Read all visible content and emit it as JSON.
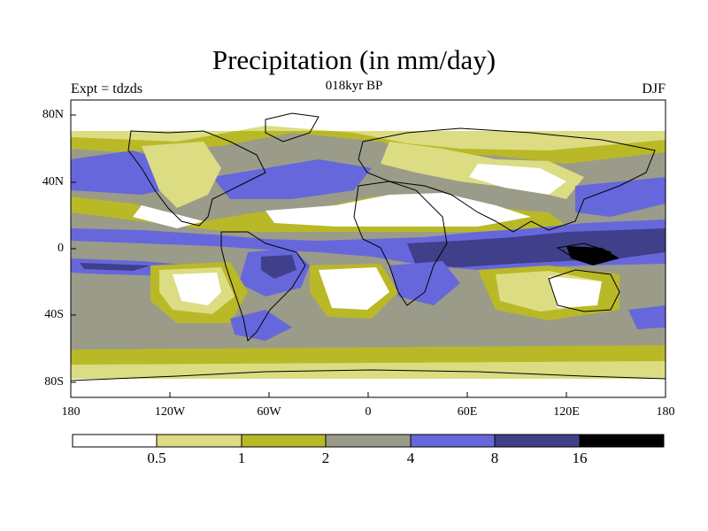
{
  "title": "Precipitation (in mm/day)",
  "experiment_label": "Expt = tdzds",
  "period_label": "018kyr BP",
  "season_label": "DJF",
  "lat_ticks": [
    "80N",
    "40N",
    "0",
    "40S",
    "80S"
  ],
  "lon_ticks": [
    "180",
    "120W",
    "60W",
    "0",
    "60E",
    "120E",
    "180"
  ],
  "colorbar": {
    "labels": [
      "0.5",
      "1",
      "2",
      "4",
      "8",
      "16"
    ],
    "colors": [
      "#ffffff",
      "#dcdc82",
      "#b9b927",
      "#9b9b8a",
      "#6767dc",
      "#3f3f8a",
      "#000000"
    ]
  }
}
